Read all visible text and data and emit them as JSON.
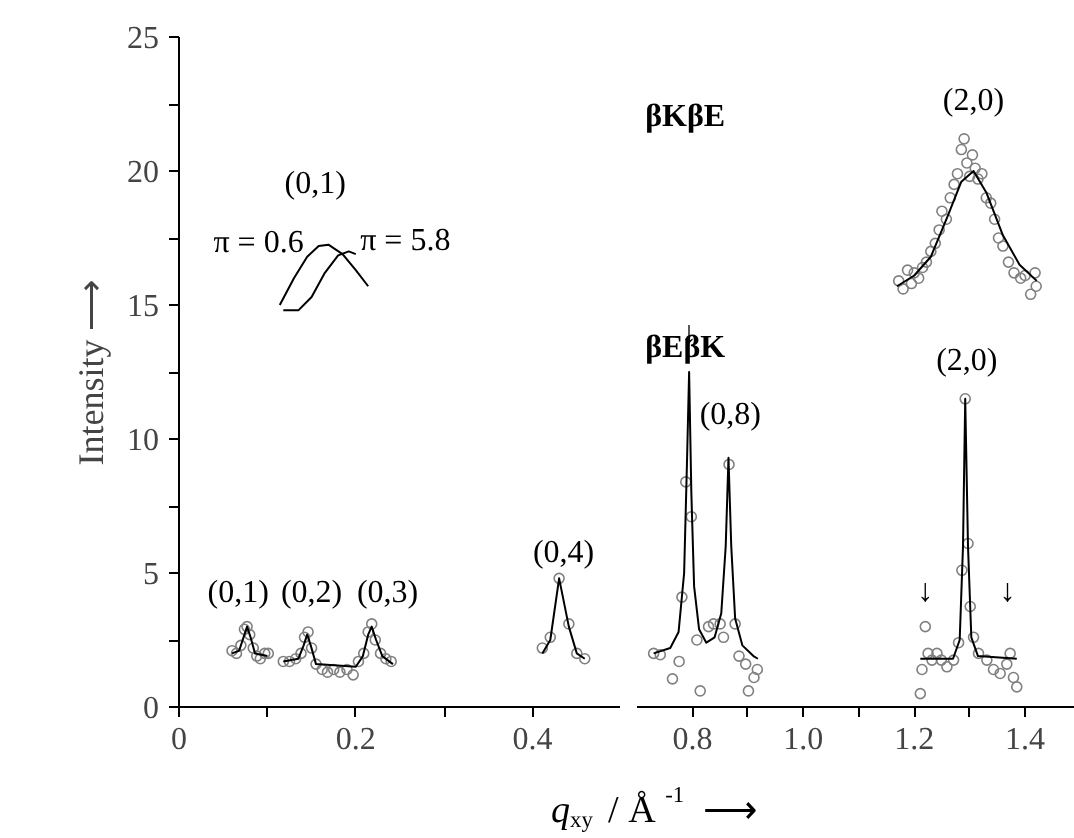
{
  "chart_data": [
    {
      "type": "scatter",
      "ylabel": "Intensity ⟶",
      "xlim": [
        0,
        0.5
      ],
      "ylim": [
        0,
        25
      ],
      "xticks": [
        0,
        0.2,
        0.4,
        {
          "value": 0.1,
          "label": null
        },
        {
          "value": 0.3,
          "label": null
        }
      ],
      "yticks": [
        0,
        5,
        10,
        15,
        20,
        25,
        {
          "value": 2.5,
          "label": null
        },
        {
          "value": 7.5,
          "label": null
        },
        {
          "value": 12.5,
          "label": null
        },
        {
          "value": 17.5,
          "label": null
        },
        {
          "value": 22.5,
          "label": null
        }
      ],
      "series": [
        {
          "marker": "circle",
          "color": "#808080",
          "x": [
            0.06,
            0.065,
            0.07,
            0.074,
            0.077,
            0.08,
            0.084,
            0.088,
            0.092,
            0.097,
            0.101
          ],
          "values": [
            2.1,
            2.0,
            2.3,
            2.9,
            3.0,
            2.7,
            2.2,
            1.9,
            1.8,
            2.0,
            2.0
          ]
        },
        {
          "type": "line",
          "color": "#000000",
          "x": [
            0.06,
            0.068,
            0.073,
            0.077,
            0.081,
            0.086,
            0.1
          ],
          "values": [
            2.0,
            2.1,
            2.6,
            3.0,
            2.6,
            2.0,
            1.9
          ]
        },
        {
          "marker": "circle",
          "color": "#808080",
          "x": [
            0.118,
            0.125,
            0.132,
            0.138,
            0.142,
            0.146,
            0.15,
            0.155,
            0.162,
            0.168,
            0.175,
            0.182,
            0.19,
            0.197,
            0.203,
            0.209,
            0.214,
            0.218,
            0.222,
            0.228,
            0.234,
            0.24
          ],
          "values": [
            1.7,
            1.7,
            1.8,
            2.0,
            2.6,
            2.8,
            2.2,
            1.6,
            1.4,
            1.3,
            1.4,
            1.3,
            1.4,
            1.2,
            1.7,
            2.0,
            2.8,
            3.1,
            2.5,
            2.0,
            1.8,
            1.7
          ]
        },
        {
          "type": "line",
          "color": "#000000",
          "x": [
            0.118,
            0.135,
            0.141,
            0.145,
            0.149,
            0.155,
            0.2,
            0.208,
            0.214,
            0.218,
            0.223,
            0.23,
            0.242
          ],
          "values": [
            1.7,
            1.8,
            2.3,
            2.7,
            2.3,
            1.6,
            1.5,
            1.9,
            2.7,
            3.0,
            2.5,
            1.9,
            1.6
          ]
        },
        {
          "marker": "circle",
          "color": "#808080",
          "x": [
            0.411,
            0.42,
            0.43,
            0.441,
            0.45,
            0.459
          ],
          "values": [
            2.2,
            2.6,
            4.8,
            3.1,
            2.0,
            1.8
          ]
        },
        {
          "type": "line",
          "color": "#000000",
          "x": [
            0.411,
            0.42,
            0.43,
            0.441,
            0.45,
            0.459
          ],
          "values": [
            2.0,
            2.5,
            4.8,
            3.0,
            2.0,
            1.8
          ]
        },
        {
          "type": "line",
          "color": "#000000",
          "x": [
            0.114,
            0.13,
            0.145,
            0.158,
            0.169,
            0.185,
            0.2,
            0.214
          ],
          "values": [
            15.0,
            16.0,
            16.8,
            17.2,
            17.25,
            16.9,
            16.3,
            15.7
          ]
        },
        {
          "type": "line",
          "color": "#000000",
          "x": [
            0.118,
            0.135,
            0.15,
            0.165,
            0.18,
            0.192,
            0.2
          ],
          "values": [
            14.8,
            14.8,
            15.3,
            16.2,
            16.85,
            17.0,
            16.9
          ]
        }
      ],
      "annotations": [
        "(0,1)",
        "(0,2)",
        "(0,3)",
        "(0,4)",
        "(0,1)",
        "π = 0.6",
        "π = 5.8"
      ]
    },
    {
      "type": "scatter",
      "xlabel": "q$_{xy}$ / Å$^{-1}$ ⟶",
      "xlim": [
        0.7,
        1.49
      ],
      "ylim": [
        0,
        25
      ],
      "tick_labels": "x",
      "xticks": [
        0.8,
        {
          "value": 1.0,
          "label": "1.0"
        },
        1.2,
        1.4,
        {
          "value": 0.9,
          "label": null
        },
        {
          "value": 1.1,
          "label": null
        },
        {
          "value": 1.3,
          "label": null
        }
      ],
      "series": [
        {
          "marker": "circle",
          "color": "#808080",
          "x": [
            0.73,
            0.742,
            0.764,
            0.776,
            0.781,
            0.788,
            0.798,
            0.808,
            0.814,
            0.829,
            0.838,
            0.85,
            0.856,
            0.866,
            0.877,
            0.884,
            0.896,
            0.901,
            0.911,
            0.917
          ],
          "values": [
            2.0,
            1.95,
            1.05,
            1.7,
            4.1,
            8.4,
            7.1,
            2.5,
            0.6,
            3.0,
            3.1,
            3.1,
            2.6,
            9.05,
            3.1,
            1.9,
            1.6,
            0.6,
            1.1,
            1.4
          ]
        },
        {
          "type": "line",
          "color": "#000000",
          "x": [
            0.73,
            0.76,
            0.775,
            0.785,
            0.79,
            0.794,
            0.798,
            0.803,
            0.812,
            0.825,
            0.84,
            0.852,
            0.86,
            0.865,
            0.87,
            0.877,
            0.89,
            0.91,
            0.918
          ],
          "values": [
            2.0,
            2.2,
            2.8,
            5,
            9,
            12.5,
            8,
            4.5,
            2.9,
            2.4,
            2.6,
            3.5,
            6,
            9.3,
            6,
            3.3,
            2.3,
            1.9,
            1.8
          ]
        },
        {
          "marker": "circle",
          "color": "#808080",
          "x": [
            1.211,
            1.214,
            1.22,
            1.225,
            1.232,
            1.241,
            1.249,
            1.259,
            1.271,
            1.28,
            1.286,
            1.292,
            1.297,
            1.301,
            1.307,
            1.316,
            1.331,
            1.343,
            1.355,
            1.367,
            1.373,
            1.379,
            1.385
          ],
          "values": [
            0.5,
            1.4,
            3.0,
            2.0,
            1.75,
            2.0,
            1.75,
            1.5,
            1.75,
            2.4,
            5.1,
            11.5,
            6.1,
            3.75,
            2.6,
            2.0,
            1.75,
            1.4,
            1.25,
            1.6,
            2.0,
            1.1,
            0.75
          ]
        },
        {
          "type": "line",
          "color": "#000000",
          "x": [
            1.211,
            1.27,
            1.282,
            1.288,
            1.292,
            1.297,
            1.303,
            1.315,
            1.385
          ],
          "values": [
            1.8,
            1.8,
            2.5,
            6,
            11.5,
            6,
            2.6,
            1.9,
            1.8
          ]
        },
        {
          "marker": "circle",
          "color": "#808080",
          "x": [
            1.172,
            1.18,
            1.188,
            1.195,
            1.2,
            1.208,
            1.215,
            1.222,
            1.23,
            1.238,
            1.245,
            1.25,
            1.258,
            1.265,
            1.272,
            1.278,
            1.285,
            1.29,
            1.295,
            1.3,
            1.305,
            1.31,
            1.315,
            1.322,
            1.33,
            1.338,
            1.345,
            1.352,
            1.36,
            1.37,
            1.38,
            1.392,
            1.4,
            1.41,
            1.418,
            1.42
          ],
          "values": [
            15.9,
            15.6,
            16.3,
            15.8,
            16.2,
            16.0,
            16.4,
            16.6,
            17.0,
            17.3,
            17.8,
            18.5,
            18.2,
            19.0,
            19.5,
            19.9,
            20.8,
            21.2,
            20.3,
            19.8,
            20.6,
            20.1,
            19.7,
            19.9,
            19.0,
            18.8,
            18.2,
            17.5,
            17.2,
            16.6,
            16.2,
            16.0,
            16.1,
            15.4,
            16.2,
            15.7
          ]
        },
        {
          "type": "line",
          "color": "#000000",
          "x": [
            1.169,
            1.2,
            1.23,
            1.26,
            1.285,
            1.307,
            1.33,
            1.36,
            1.39,
            1.421
          ],
          "values": [
            15.7,
            16.1,
            16.8,
            18.3,
            19.6,
            20.0,
            19.2,
            17.6,
            16.5,
            15.9
          ]
        }
      ],
      "annotations": [
        "βKβE",
        "βEβK",
        "(2,0)",
        "(0,8)",
        "(2,0)",
        "↓",
        "↓",
        "↓"
      ]
    }
  ]
}
